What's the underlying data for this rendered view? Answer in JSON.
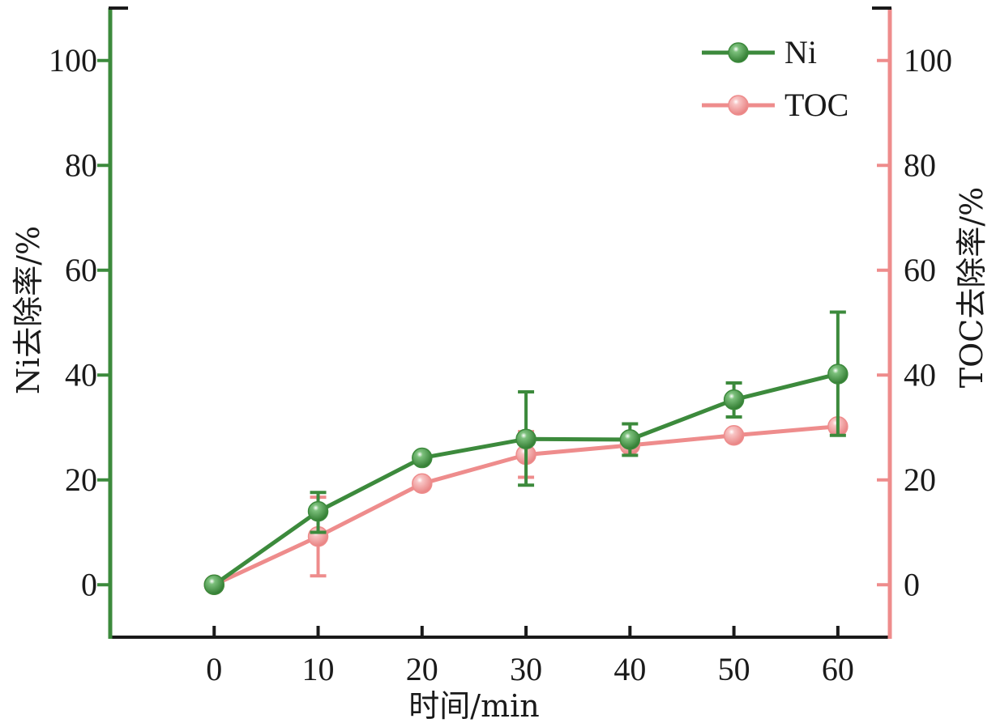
{
  "chart_data": {
    "type": "line",
    "x": [
      0,
      10,
      20,
      30,
      40,
      50,
      60
    ],
    "xlabel": "时间/min",
    "xlim": [
      -10,
      65
    ],
    "xticks": [
      0,
      10,
      20,
      30,
      40,
      50,
      60
    ],
    "ylim": [
      -10,
      110
    ],
    "yticks": [
      0,
      20,
      40,
      60,
      80,
      100
    ],
    "ylabel_left": "Ni去除率/%",
    "ylabel_right": "TOC去除率/%",
    "legend_position": "top-right",
    "grid": false,
    "colors": {
      "left_axis": "#3c8a3c",
      "right_axis": "#ee8c8c",
      "bottom_axis": "#1a1a1a"
    },
    "series": [
      {
        "name": "Ni",
        "color": "#3c8a3c",
        "values": [
          0,
          14,
          24.2,
          27.8,
          27.7,
          35.3,
          40.2
        ],
        "err_low": [
          0,
          10,
          23.5,
          19,
          24.7,
          32,
          28.5
        ],
        "err_high": [
          0,
          17.6,
          24.8,
          36.8,
          30.7,
          38.5,
          52
        ]
      },
      {
        "name": "TOC",
        "color": "#ee8c8c",
        "values": [
          0,
          9.2,
          19.3,
          24.8,
          26.6,
          28.5,
          30.2
        ],
        "err_low": [
          0,
          1.7,
          19.3,
          20.5,
          26.6,
          28.5,
          30.2
        ],
        "err_high": [
          0,
          16.7,
          19.3,
          29.2,
          26.6,
          28.5,
          30.2
        ]
      }
    ]
  }
}
